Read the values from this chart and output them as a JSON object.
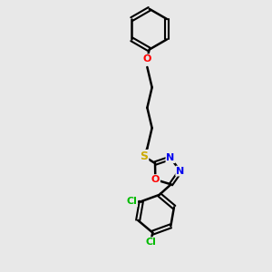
{
  "bg_color": "#e8e8e8",
  "bond_color": "#000000",
  "atom_colors": {
    "O": "#ff0000",
    "S": "#ccaa00",
    "N": "#0000ee",
    "Cl": "#00bb00",
    "C": "#000000"
  },
  "figsize": [
    3.0,
    3.0
  ],
  "dpi": 100
}
